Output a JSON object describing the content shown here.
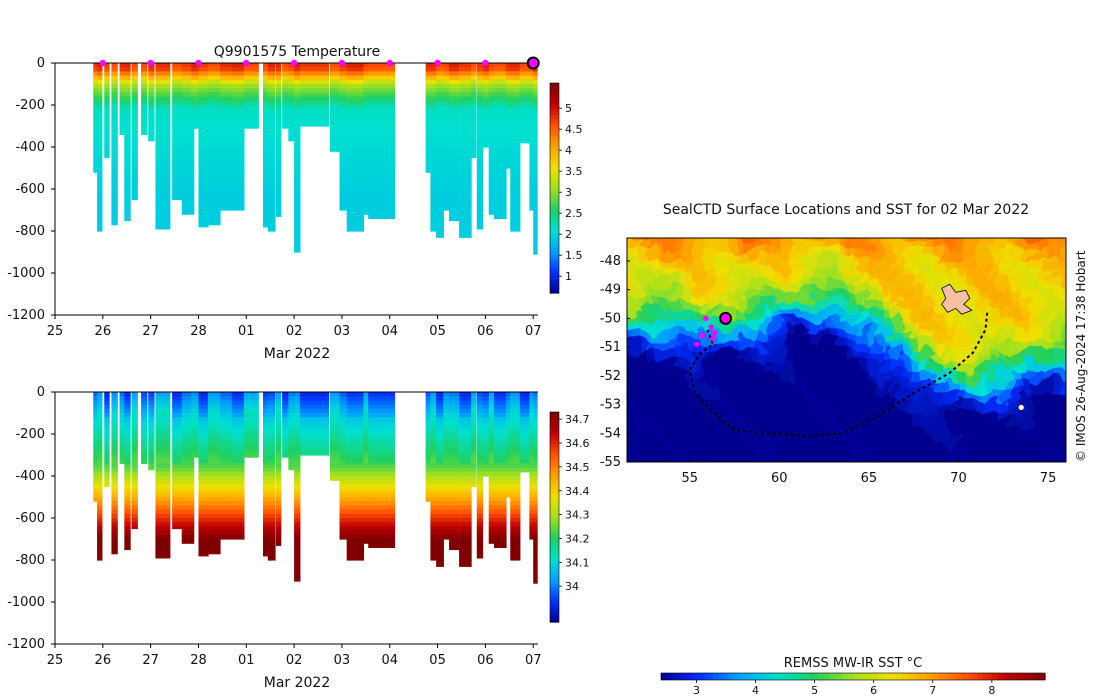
{
  "chart_data": [
    {
      "type": "heatmap",
      "title": "Q9901575  Temperature",
      "variable": "temperature",
      "xlabel": "Mar 2022",
      "x_tick_labels": [
        "25",
        "26",
        "27",
        "28",
        "01",
        "02",
        "03",
        "04",
        "05",
        "06",
        "07"
      ],
      "x_tick_days": [
        25,
        26,
        27,
        28,
        29,
        30,
        31,
        32,
        33,
        34,
        35
      ],
      "xlim": [
        25,
        35.1
      ],
      "ylim": [
        -1200,
        0
      ],
      "y_ticks": [
        0,
        -200,
        -400,
        -600,
        -800,
        -1000,
        -1200
      ],
      "y_tick_labels": [
        "0",
        "-200",
        "-400",
        "-600",
        "-800",
        "-1000",
        "-1200"
      ],
      "surface_markers_days": [
        26,
        27,
        28,
        29,
        30,
        31,
        32,
        33,
        34
      ],
      "latest_marker_day": 35,
      "colorbar": {
        "min": 0.6,
        "max": 5.6,
        "ticks": [
          1,
          1.5,
          2,
          2.5,
          3,
          3.5,
          4,
          4.5,
          5
        ],
        "tick_labels": [
          "1",
          "1.5",
          "2",
          "2.5",
          "3",
          "3.5",
          "4",
          "4.5",
          "5"
        ],
        "colors": [
          "#00008f",
          "#0030ff",
          "#00a0ff",
          "#00e0d0",
          "#20d060",
          "#a0e020",
          "#f0e000",
          "#ffa000",
          "#ff5000",
          "#c00000",
          "#800000"
        ]
      },
      "profiles": [
        {
          "t": 25.8,
          "w": 0.08,
          "depth": 520
        },
        {
          "t": 25.88,
          "w": 0.1,
          "depth": 800
        },
        {
          "t": 26.03,
          "w": 0.1,
          "depth": 450
        },
        {
          "t": 26.18,
          "w": 0.12,
          "depth": 770
        },
        {
          "t": 26.35,
          "w": 0.12,
          "depth": 340
        },
        {
          "t": 26.45,
          "w": 0.12,
          "depth": 750
        },
        {
          "t": 26.6,
          "w": 0.12,
          "depth": 650
        },
        {
          "t": 26.8,
          "w": 0.12,
          "depth": 340
        },
        {
          "t": 26.95,
          "w": 0.12,
          "depth": 370
        },
        {
          "t": 27.1,
          "w": 0.3,
          "depth": 790
        },
        {
          "t": 27.45,
          "w": 0.25,
          "depth": 650
        },
        {
          "t": 27.65,
          "w": 0.25,
          "depth": 720
        },
        {
          "t": 27.85,
          "w": 0.25,
          "depth": 310
        },
        {
          "t": 28.0,
          "w": 0.2,
          "depth": 780
        },
        {
          "t": 28.2,
          "w": 0.25,
          "depth": 770
        },
        {
          "t": 28.45,
          "w": 0.25,
          "depth": 700
        },
        {
          "t": 28.7,
          "w": 0.25,
          "depth": 700
        },
        {
          "t": 28.95,
          "w": 0.3,
          "depth": 310
        },
        {
          "t": 29.35,
          "w": 0.1,
          "depth": 780
        },
        {
          "t": 29.45,
          "w": 0.15,
          "depth": 800
        },
        {
          "t": 29.62,
          "w": 0.1,
          "depth": 730
        },
        {
          "t": 29.75,
          "w": 0.15,
          "depth": 310
        },
        {
          "t": 29.88,
          "w": 0.12,
          "depth": 370
        },
        {
          "t": 30.0,
          "w": 0.12,
          "depth": 900
        },
        {
          "t": 30.12,
          "w": 0.6,
          "depth": 300
        },
        {
          "t": 30.75,
          "w": 0.25,
          "depth": 420
        },
        {
          "t": 30.95,
          "w": 0.15,
          "depth": 700
        },
        {
          "t": 31.1,
          "w": 0.35,
          "depth": 800
        },
        {
          "t": 31.45,
          "w": 0.1,
          "depth": 720
        },
        {
          "t": 31.55,
          "w": 0.55,
          "depth": 740
        },
        {
          "t": 32.75,
          "w": 0.1,
          "depth": 520
        },
        {
          "t": 32.85,
          "w": 0.12,
          "depth": 800
        },
        {
          "t": 32.97,
          "w": 0.15,
          "depth": 830
        },
        {
          "t": 33.12,
          "w": 0.12,
          "depth": 700
        },
        {
          "t": 33.24,
          "w": 0.2,
          "depth": 750
        },
        {
          "t": 33.45,
          "w": 0.25,
          "depth": 830
        },
        {
          "t": 33.7,
          "w": 0.1,
          "depth": 450
        },
        {
          "t": 33.82,
          "w": 0.12,
          "depth": 790
        },
        {
          "t": 33.95,
          "w": 0.12,
          "depth": 400
        },
        {
          "t": 34.07,
          "w": 0.1,
          "depth": 720
        },
        {
          "t": 34.18,
          "w": 0.25,
          "depth": 740
        },
        {
          "t": 34.43,
          "w": 0.1,
          "depth": 500
        },
        {
          "t": 34.52,
          "w": 0.2,
          "depth": 800
        },
        {
          "t": 34.72,
          "w": 0.2,
          "depth": 380
        },
        {
          "t": 34.92,
          "w": 0.1,
          "depth": 700
        },
        {
          "t": 35.0,
          "w": 0.08,
          "depth": 910
        }
      ]
    },
    {
      "type": "heatmap",
      "title": "",
      "variable": "salinity",
      "xlabel": "Mar 2022",
      "x_tick_labels": [
        "25",
        "26",
        "27",
        "28",
        "01",
        "02",
        "03",
        "04",
        "05",
        "06",
        "07"
      ],
      "x_tick_days": [
        25,
        26,
        27,
        28,
        29,
        30,
        31,
        32,
        33,
        34,
        35
      ],
      "xlim": [
        25,
        35.1
      ],
      "ylim": [
        -1200,
        0
      ],
      "y_ticks": [
        0,
        -200,
        -400,
        -600,
        -800,
        -1000,
        -1200
      ],
      "y_tick_labels": [
        "0",
        "-200",
        "-400",
        "-600",
        "-800",
        "-1000",
        "-1200"
      ],
      "colorbar": {
        "min": 33.85,
        "max": 34.73,
        "ticks": [
          34,
          34.1,
          34.2,
          34.3,
          34.4,
          34.5,
          34.6,
          34.7
        ],
        "tick_labels": [
          "34",
          "34.1",
          "34.2",
          "34.3",
          "34.4",
          "34.5",
          "34.6",
          "34.7"
        ],
        "colors": [
          "#00008f",
          "#0030ff",
          "#00a0ff",
          "#00e0d0",
          "#20d060",
          "#a0e020",
          "#f0e000",
          "#ffa000",
          "#ff5000",
          "#c00000",
          "#800000"
        ]
      }
    },
    {
      "type": "heatmap",
      "title": "SealCTD Surface Locations and SST for 02 Mar 2022",
      "variable": "sst",
      "xlim": [
        51.5,
        76
      ],
      "ylim": [
        -55,
        -47.2
      ],
      "x_ticks": [
        55,
        60,
        65,
        70,
        75
      ],
      "x_tick_labels": [
        "55",
        "60",
        "65",
        "70",
        "75"
      ],
      "y_ticks": [
        -48,
        -49,
        -50,
        -51,
        -52,
        -53,
        -54,
        -55
      ],
      "y_tick_labels": [
        "-48",
        "-49",
        "-50",
        "-51",
        "-52",
        "-53",
        "-54",
        "-55"
      ],
      "colorbar": {
        "label": "REMSS MW-IR SST °C",
        "min": 2.4,
        "max": 8.9,
        "ticks": [
          3,
          4,
          5,
          6,
          7,
          8
        ],
        "tick_labels": [
          "3",
          "4",
          "5",
          "6",
          "7",
          "8"
        ],
        "colors": [
          "#00008f",
          "#0030ff",
          "#00a0ff",
          "#00e0d0",
          "#20d060",
          "#a0e020",
          "#f0e000",
          "#ffa000",
          "#ff5000",
          "#c00000",
          "#800000"
        ]
      },
      "track": [
        [
          71.6,
          -49.8
        ],
        [
          71.5,
          -50.4
        ],
        [
          70.8,
          -51.2
        ],
        [
          69.5,
          -51.9
        ],
        [
          67.5,
          -52.6
        ],
        [
          65.5,
          -53.4
        ],
        [
          63.5,
          -54.0
        ],
        [
          61.5,
          -54.1
        ],
        [
          59.5,
          -54.0
        ],
        [
          57.5,
          -53.9
        ],
        [
          56.2,
          -53.2
        ],
        [
          55.3,
          -52.6
        ],
        [
          55.0,
          -51.8
        ],
        [
          55.6,
          -51.2
        ],
        [
          56.3,
          -50.9
        ],
        [
          56.0,
          -50.4
        ]
      ],
      "surface_locations": [
        [
          55.9,
          -50.0
        ],
        [
          56.2,
          -50.3
        ],
        [
          56.4,
          -50.5
        ],
        [
          55.7,
          -50.6
        ],
        [
          56.3,
          -50.7
        ],
        [
          55.4,
          -50.9
        ]
      ],
      "latest_location": [
        57.0,
        -50.0
      ],
      "land_patches": [
        [
          69.4,
          -49.3
        ],
        [
          73.5,
          -53.1
        ]
      ],
      "credit": "© IMOS 26-Aug-2024 17:38 Hobart"
    }
  ]
}
